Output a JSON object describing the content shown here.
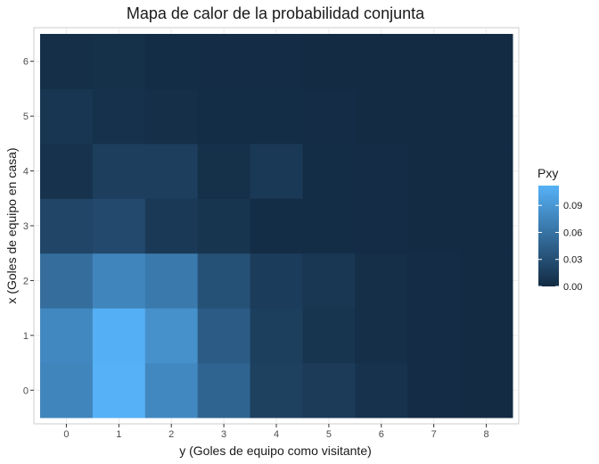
{
  "chart_data": {
    "type": "heatmap",
    "title": "Mapa de calor de la probabilidad conjunta",
    "xlabel": "y (Goles de equipo como visitante)",
    "ylabel": "x (Goles de equipo en casa)",
    "x_categories": [
      0,
      1,
      2,
      3,
      4,
      5,
      6,
      7,
      8
    ],
    "y_categories": [
      0,
      1,
      2,
      3,
      4,
      5,
      6
    ],
    "legend": {
      "title": "Pxy",
      "ticks": [
        0.0,
        0.03,
        0.06,
        0.09
      ],
      "tick_labels": [
        "0.00",
        "0.03",
        "0.06",
        "0.09"
      ],
      "range": [
        0,
        0.112
      ],
      "low_color": "#132B43",
      "high_color": "#56B1F7",
      "placement": "right"
    },
    "grid": true,
    "values": [
      [
        0.075,
        0.112,
        0.078,
        0.048,
        0.018,
        0.013,
        0.006,
        0.001,
        0.0
      ],
      [
        0.078,
        0.11,
        0.085,
        0.041,
        0.017,
        0.008,
        0.003,
        0.001,
        0.0
      ],
      [
        0.056,
        0.075,
        0.065,
        0.032,
        0.014,
        0.01,
        0.003,
        0.001,
        0.0
      ],
      [
        0.022,
        0.026,
        0.012,
        0.008,
        0.002,
        0.002,
        0.001,
        0.0,
        0.0
      ],
      [
        0.006,
        0.016,
        0.016,
        0.004,
        0.012,
        0.002,
        0.001,
        0.0,
        0.0
      ],
      [
        0.009,
        0.005,
        0.003,
        0.002,
        0.002,
        0.001,
        0.0,
        0.0,
        0.0
      ],
      [
        0.003,
        0.004,
        0.002,
        0.001,
        0.001,
        0.0,
        0.0,
        0.0,
        0.0
      ]
    ]
  }
}
